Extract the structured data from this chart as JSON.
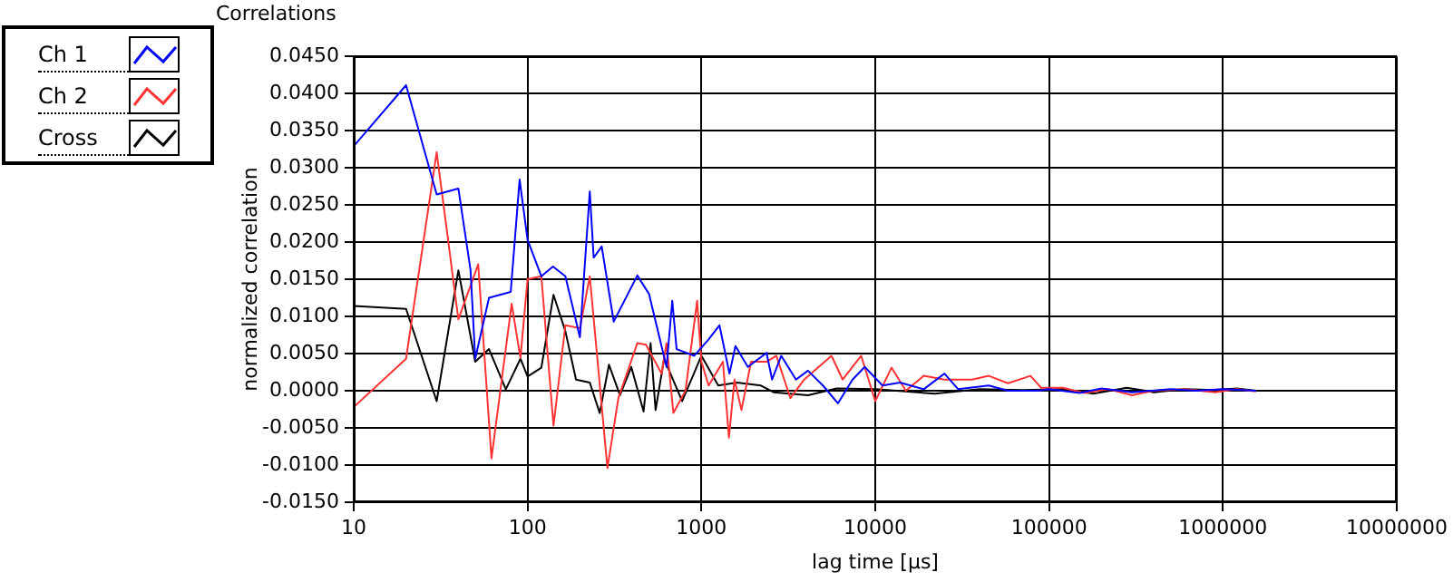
{
  "chart_data": {
    "type": "line",
    "title": "Correlations",
    "xlabel": "lag time [µs]",
    "ylabel": "normalized correlation",
    "log": "x",
    "grid": true,
    "legend": "top left",
    "marker": "none",
    "line_style": "solid",
    "xlim": [
      10,
      10000000
    ],
    "xticks": [
      10,
      100,
      1000,
      10000,
      100000,
      1000000,
      10000000
    ],
    "ylim": [
      -0.015,
      0.045
    ],
    "yticks": [
      {
        "value": -0.015,
        "label": "-0.0150"
      },
      {
        "value": -0.01,
        "label": "-0.0100"
      },
      {
        "value": -0.005,
        "label": "-0.0050"
      },
      {
        "value": 0,
        "label": "0.0000"
      },
      {
        "value": 0.005,
        "label": "0.0050"
      },
      {
        "value": 0.01,
        "label": "0.0100"
      },
      {
        "value": 0.015,
        "label": "0.0150"
      },
      {
        "value": 0.02,
        "label": "0.0200"
      },
      {
        "value": 0.025,
        "label": "0.0250"
      },
      {
        "value": 0.03,
        "label": "0.0300"
      },
      {
        "value": 0.035,
        "label": "0.0350"
      },
      {
        "value": 0.04,
        "label": "0.0400"
      },
      {
        "value": 0.045,
        "label": "0.0450"
      }
    ],
    "series": [
      {
        "name": "Ch 1",
        "color": "#0000ff",
        "x": [
          10,
          20,
          30,
          40,
          47,
          50,
          60,
          80,
          90,
          100,
          120,
          140,
          165,
          200,
          228,
          240,
          267,
          313,
          428,
          500,
          630,
          680,
          720,
          910,
          1100,
          1270,
          1450,
          1570,
          1850,
          2370,
          2550,
          2880,
          3500,
          4100,
          5000,
          6100,
          7400,
          8700,
          11000,
          13900,
          19000,
          25000,
          30000,
          45000,
          58000,
          86000,
          100000,
          150000,
          200000,
          300000,
          500000,
          700000,
          1000000,
          1300000,
          1550000
        ],
        "values": [
          0.0329,
          0.0411,
          0.0264,
          0.0272,
          0.0162,
          0.0043,
          0.0125,
          0.0133,
          0.0284,
          0.0203,
          0.0154,
          0.0167,
          0.0154,
          0.0072,
          0.0268,
          0.0179,
          0.0194,
          0.0093,
          0.0155,
          0.013,
          0.0032,
          0.0121,
          0.0056,
          0.0047,
          0.0069,
          0.0088,
          0.0023,
          0.006,
          0.0032,
          0.0051,
          0.0015,
          0.0047,
          0.0015,
          0.0027,
          0.0007,
          -0.0017,
          0.0015,
          0.0032,
          0.0007,
          0.0011,
          0.0002,
          0.0023,
          0.0002,
          0.0007,
          0,
          0,
          0.0002,
          -0.0003,
          0.0003,
          -0.0002,
          0.0002,
          0,
          0.0002,
          0.0001,
          0
        ]
      },
      {
        "name": "Ch 2",
        "color": "#ff3333",
        "x": [
          10,
          20,
          30,
          40,
          52,
          62,
          81,
          91,
          100,
          120,
          141,
          165,
          200,
          228,
          288,
          333,
          428,
          480,
          590,
          630,
          690,
          810,
          945,
          1000,
          1100,
          1330,
          1440,
          1550,
          1700,
          1930,
          2370,
          2700,
          3250,
          3900,
          5600,
          6500,
          8300,
          10000,
          12400,
          15000,
          19000,
          25000,
          36000,
          45000,
          58000,
          78000,
          81000,
          90000,
          120000,
          160000,
          220000,
          300000,
          400000,
          600000,
          900000,
          1200000,
          1550000
        ],
        "values": [
          -0.0022,
          0.0043,
          0.0321,
          0.0096,
          0.017,
          -0.0091,
          0.0117,
          0.0044,
          0.015,
          0.0154,
          -0.0047,
          0.0088,
          0.0084,
          0.0154,
          -0.0104,
          -0.001,
          0.0064,
          0.0062,
          0.0023,
          0.0064,
          -0.003,
          0,
          0.0121,
          0.0039,
          0.0007,
          0.0039,
          -0.0063,
          0.0015,
          -0.0026,
          0.0039,
          0.0039,
          0.0047,
          -0.001,
          0.0015,
          0.0047,
          0.0015,
          0.0047,
          -0.0014,
          0.0031,
          0,
          0.002,
          0.0015,
          0.0015,
          0.002,
          0.001,
          0.002,
          0.0016,
          0.0004,
          0.0004,
          -0.0003,
          0.0002,
          -0.0006,
          0,
          0.0002,
          -0.0002,
          0.0002,
          -0.0001
        ]
      },
      {
        "name": "Cross",
        "color": "#000000",
        "x": [
          10,
          20,
          30,
          40,
          50,
          60,
          75,
          91,
          100,
          120,
          141,
          165,
          190,
          228,
          260,
          294,
          340,
          395,
          465,
          510,
          545,
          610,
          775,
          1000,
          1250,
          1600,
          2200,
          2600,
          4100,
          6000,
          10000,
          22000,
          40000,
          70000,
          120000,
          180000,
          280000,
          400000,
          600000,
          900000,
          1200000,
          1550000
        ],
        "values": [
          0.0114,
          0.011,
          -0.0014,
          0.0162,
          0.0039,
          0.0056,
          0.0002,
          0.0043,
          0.0019,
          0.0031,
          0.0129,
          0.008,
          0.0015,
          0.0011,
          -0.003,
          0.0035,
          -0.0006,
          0.0032,
          -0.0028,
          0.0064,
          -0.0026,
          0.0043,
          -0.0014,
          0.0047,
          0.0007,
          0.0011,
          0.0007,
          -0.0002,
          -0.0006,
          0.0003,
          0.0002,
          -0.0004,
          0.0002,
          0.0001,
          0.0002,
          -0.0004,
          0.0004,
          -0.0002,
          0.0002,
          0.0001,
          0.0003,
          0
        ]
      }
    ]
  }
}
